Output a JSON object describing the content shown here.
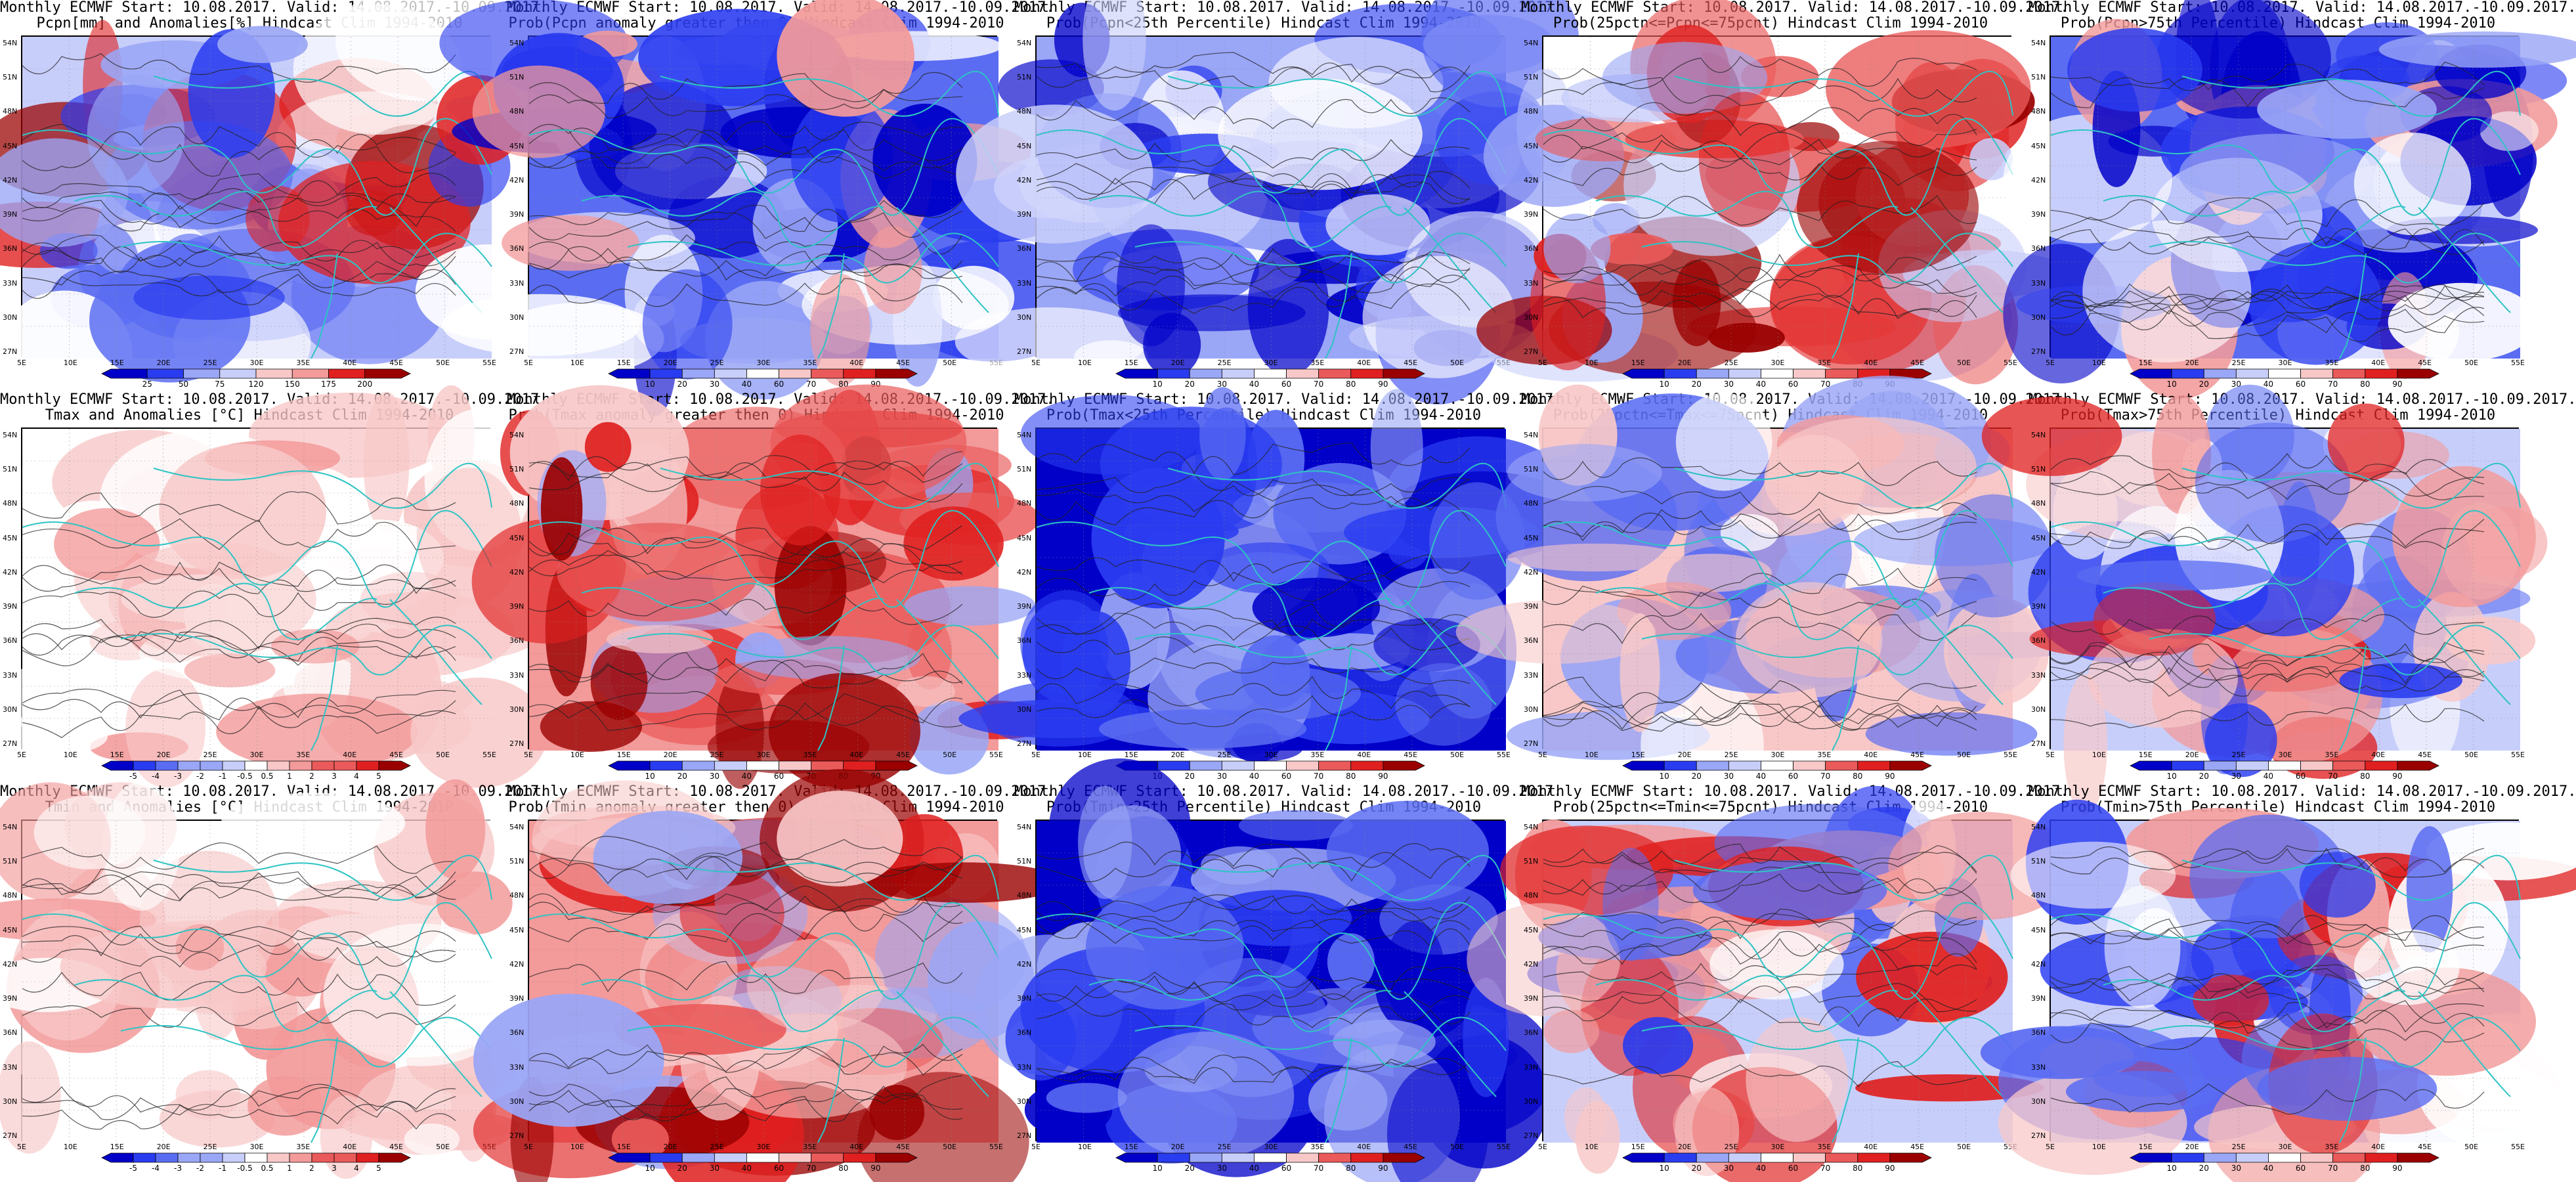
{
  "colors": {
    "sea_cyan": "#2ec4c4",
    "contour": "#222222",
    "blue_dark": "#0000c8",
    "blue": "#2a3cf0",
    "blue_mid": "#5a6cf2",
    "blue_light": "#9aa6f6",
    "blue_pale": "#c8cefa",
    "white": "#ffffff",
    "red_pale": "#f8c8c8",
    "red_light": "#f39a9a",
    "red_mid": "#ea5a5a",
    "red": "#e02020",
    "red_dark": "#9a0000"
  },
  "map": {
    "lat_labels": [
      "54N",
      "51N",
      "48N",
      "45N",
      "42N",
      "39N",
      "36N",
      "33N",
      "30N",
      "27N"
    ],
    "lon_labels": [
      "5E",
      "10E",
      "15E",
      "20E",
      "25E",
      "30E",
      "35E",
      "40E",
      "45E",
      "50E",
      "55E"
    ]
  },
  "colorbars": {
    "prob": [
      "10",
      "20",
      "30",
      "40",
      "60",
      "70",
      "80",
      "90"
    ],
    "pcpn_anom": [
      "25",
      "50",
      "75",
      "120",
      "150",
      "175",
      "200"
    ],
    "temp_anom": [
      "-5",
      "-4",
      "-3",
      "-2",
      "-1",
      "-0.5",
      "0.5",
      "1",
      "2",
      "3",
      "4",
      "5"
    ]
  },
  "rows": [
    {
      "panels": [
        {
          "title1": "Monthly ECMWF Start: 10.08.2017. Valid: 14.08.2017.-10.09.2017.",
          "title2": "Pcpn[mm] and Anomalies[%] Hindcast Clim 1994-2010",
          "cbar": "pcpn_anom",
          "scheme": "pcpn"
        },
        {
          "title1": "Monthly ECMWF Start: 10.08.2017. Valid: 14.08.2017.-10.09.2017.",
          "title2": "Prob(Pcpn anomaly greater then 0) Hindcast Clim 1994-2010",
          "cbar": "prob",
          "scheme": "blue_heavy"
        },
        {
          "title1": "Monthly ECMWF Start: 10.08.2017. Valid: 14.08.2017.-10.09.2017.",
          "title2": "Prob(Pcpn<25th Percentile) Hindcast Clim 1994-2010",
          "cbar": "prob",
          "scheme": "blue_north"
        },
        {
          "title1": "Monthly ECMWF Start: 10.08.2017. Valid: 14.08.2017.-10.09.2017.",
          "title2": "Prob(25pctn<=Pcpn<=75pcnt) Hindcast Clim 1994-2010",
          "cbar": "prob",
          "scheme": "red_south"
        },
        {
          "title1": "Monthly ECMWF Start: 10.08.2017. Valid: 14.08.2017.-10.09.2017.",
          "title2": "Prob(Pcpn>75th Percentile) Hindcast Clim 1994-2010",
          "cbar": "prob",
          "scheme": "blue_heavy"
        }
      ]
    },
    {
      "panels": [
        {
          "title1": "Monthly ECMWF Start: 10.08.2017. Valid: 14.08.2017.-10.09.2017.",
          "title2": "Tmax and Anomalies [°C] Hindcast Clim 1994-2010",
          "cbar": "temp_anom",
          "scheme": "red_pale"
        },
        {
          "title1": "Monthly ECMWF Start: 10.08.2017. Valid: 14.08.2017.-10.09.2017.",
          "title2": "Prob(Tmax anomaly greater then 0) Hindcast Clim 1994-2010",
          "cbar": "prob",
          "scheme": "red_heavy"
        },
        {
          "title1": "Monthly ECMWF Start: 10.08.2017. Valid: 14.08.2017.-10.09.2017.",
          "title2": "Prob(Tmax<25th Percentile) Hindcast Clim 1994-2010",
          "cbar": "prob",
          "scheme": "blue_full"
        },
        {
          "title1": "Monthly ECMWF Start: 10.08.2017. Valid: 14.08.2017.-10.09.2017.",
          "title2": "Prob(25pctn<=Tmax<=75pcnt) Hindcast Clim 1994-2010",
          "cbar": "prob",
          "scheme": "mixed_pale"
        },
        {
          "title1": "Monthly ECMWF Start: 10.08.2017. Valid: 14.08.2017.-10.09.2017.",
          "title2": "Prob(Tmax>75th Percentile) Hindcast Clim 1994-2010",
          "cbar": "prob",
          "scheme": "mixed"
        }
      ]
    },
    {
      "panels": [
        {
          "title1": "Monthly ECMWF Start: 10.08.2017. Valid: 14.08.2017.-10.09.2017.",
          "title2": "Tmin and Anomalies [°C] Hindcast Clim 1994-2010",
          "cbar": "temp_anom",
          "scheme": "red_pale"
        },
        {
          "title1": "Monthly ECMWF Start: 10.08.2017. Valid: 14.08.2017.-10.09.2017.",
          "title2": "Prob(Tmin anomaly greater then 0) Hindcast Clim 1994-2010",
          "cbar": "prob",
          "scheme": "red_heavy"
        },
        {
          "title1": "Monthly ECMWF Start: 10.08.2017. Valid: 14.08.2017.-10.09.2017.",
          "title2": "Prob(Tmin<25th Percentile) Hindcast Clim 1994-2010",
          "cbar": "prob",
          "scheme": "blue_full"
        },
        {
          "title1": "Monthly ECMWF Start: 10.08.2017. Valid: 14.08.2017.-10.09.2017.",
          "title2": "Prob(25pctn<=Tmin<=75pcnt) Hindcast Clim 1994-2010",
          "cbar": "prob",
          "scheme": "mixed"
        },
        {
          "title1": "Monthly ECMWF Start: 10.08.2017. Valid: 14.08.2017.-10.09.2017.",
          "title2": "Prob(Tmin>75th Percentile) Hindcast Clim 1994-2010",
          "cbar": "prob",
          "scheme": "mixed"
        }
      ]
    }
  ]
}
